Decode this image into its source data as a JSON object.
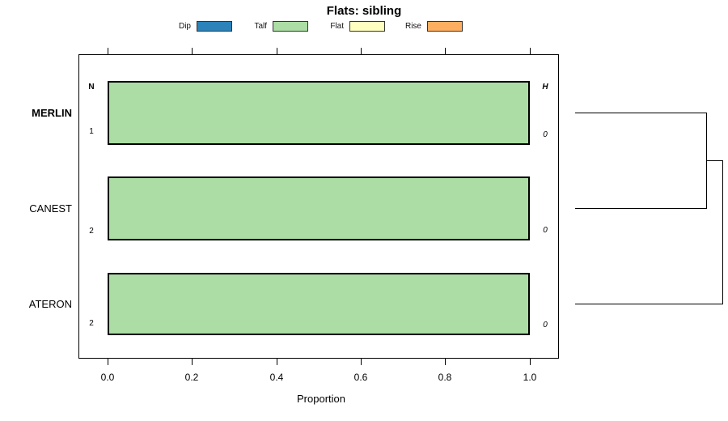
{
  "title": "Flats: sibling",
  "legend": {
    "items": [
      {
        "label": "Dip",
        "color": "#2B83BA"
      },
      {
        "label": "Talf",
        "color": "#ABDDA4"
      },
      {
        "label": "Flat",
        "color": "#FFFFBF"
      },
      {
        "label": "Rise",
        "color": "#FDAE61"
      }
    ]
  },
  "axis": {
    "ticks": [
      "0.0",
      "0.2",
      "0.4",
      "0.6",
      "0.8",
      "1.0"
    ],
    "xlabel": "Proportion"
  },
  "columns": {
    "left_header": "N",
    "right_header": "H"
  },
  "rows": [
    {
      "label": "MERLIN",
      "n": "1",
      "h": "0",
      "value": 1.0,
      "fill": "#ABDDA4",
      "highlighted": true
    },
    {
      "label": "CANEST",
      "n": "2",
      "h": "0",
      "value": 1.0,
      "fill": "#ABDDA4",
      "highlighted": false
    },
    {
      "label": "ATERON",
      "n": "2",
      "h": "0",
      "value": 1.0,
      "fill": "#ABDDA4",
      "highlighted": false
    }
  ],
  "chart_data": {
    "type": "bar",
    "orientation": "horizontal",
    "title": "Flats: sibling",
    "xlabel": "Proportion",
    "xlim": [
      0,
      1
    ],
    "x_ticks": [
      0.0,
      0.2,
      0.4,
      0.6,
      0.8,
      1.0
    ],
    "categories": [
      "MERLIN",
      "CANEST",
      "ATERON"
    ],
    "series": [
      {
        "name": "Dip",
        "color": "#2B83BA",
        "values": [
          0,
          0,
          0
        ]
      },
      {
        "name": "Talf",
        "color": "#ABDDA4",
        "values": [
          1,
          1,
          1
        ]
      },
      {
        "name": "Flat",
        "color": "#FFFFBF",
        "values": [
          0,
          0,
          0
        ]
      },
      {
        "name": "Rise",
        "color": "#FDAE61",
        "values": [
          0,
          0,
          0
        ]
      }
    ],
    "n_column": {
      "header": "N",
      "values": [
        1,
        2,
        2
      ]
    },
    "h_column": {
      "header": "H",
      "values": [
        0,
        0,
        0
      ]
    },
    "highlighted_category": "MERLIN",
    "legend_position": "top",
    "grid": false,
    "dendrogram": {
      "present": true,
      "side": "right",
      "merges": [
        {
          "join": [
            "MERLIN",
            "CANEST"
          ],
          "order": 1
        },
        {
          "join": [
            "(MERLIN,CANEST)",
            "ATERON"
          ],
          "order": 2
        }
      ]
    }
  }
}
